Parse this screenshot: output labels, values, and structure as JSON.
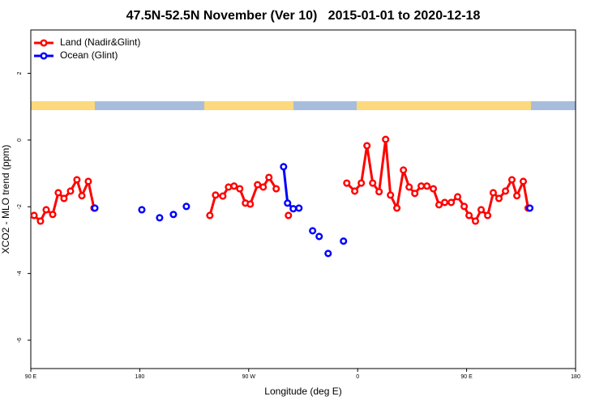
{
  "chart_data": {
    "type": "line",
    "title": "47.5N-52.5N November (Ver 10)   2015-01-01 to 2020-12-18",
    "x_label": "Longitude (deg E)",
    "y_label": "XCO2 - MLO trend (ppm)",
    "xlim": [
      90,
      540
    ],
    "ylim": [
      -6.85,
      3.3
    ],
    "xticks": [
      {
        "value": 90,
        "label": "90 E"
      },
      180,
      {
        "value": 270,
        "label": "90 W"
      },
      {
        "value": 360,
        "label": "0"
      },
      {
        "value": 450,
        "label": "90 E"
      },
      {
        "value": 540,
        "label": "180"
      }
    ],
    "yticks": [
      2,
      0,
      -2,
      -4,
      -6
    ],
    "legend": "topleft",
    "series": [
      {
        "name": "Land (Nadir&Glint)",
        "color": "#ff0000",
        "x": [
          92.7,
          98.0,
          102.7,
          108.1,
          112.7,
          117.4,
          122.8,
          128.1,
          132.2,
          137.5,
          142.2,
          null,
          237.9,
          242.6,
          248.6,
          253.3,
          257.9,
          262.6,
          267.3,
          271.3,
          277.3,
          282.0,
          286.7,
          292.7,
          null,
          302.8,
          null,
          351.0,
          357.6,
          363.0,
          367.7,
          372.4,
          377.7,
          383.1,
          387.1,
          392.4,
          397.8,
          402.5,
          407.2,
          412.5,
          417.2,
          422.5,
          427.2,
          431.9,
          437.3,
          442.6,
          448.0,
          452.0,
          457.3,
          462.0,
          467.4,
          472.0,
          476.7,
          482.1,
          487.4,
          491.5,
          496.8,
          500.8
        ],
        "values": [
          -2.26,
          -2.43,
          -2.09,
          -2.23,
          -1.58,
          -1.75,
          -1.53,
          -1.19,
          -1.67,
          -1.24,
          -2.04,
          null,
          -2.26,
          -1.65,
          -1.68,
          -1.41,
          -1.38,
          -1.46,
          -1.89,
          -1.92,
          -1.34,
          -1.41,
          -1.12,
          -1.46,
          null,
          -2.26,
          null,
          -1.29,
          -1.53,
          -1.29,
          -0.17,
          -1.29,
          -1.55,
          0.02,
          -1.65,
          -2.04,
          -0.9,
          -1.41,
          -1.6,
          -1.38,
          -1.38,
          -1.46,
          -1.94,
          -1.87,
          -1.87,
          -1.7,
          -1.99,
          -2.26,
          -2.43,
          -2.09,
          -2.26,
          -1.58,
          -1.75,
          -1.53,
          -1.19,
          -1.67,
          -1.24,
          -2.04
        ]
      },
      {
        "name": "Ocean (Glint)",
        "color": "#0000ff",
        "x": [
          142.9,
          null,
          181.7,
          null,
          196.4,
          null,
          207.8,
          null,
          218.5,
          null,
          298.8,
          302.1,
          306.8,
          311.5,
          null,
          322.8,
          null,
          328.2,
          null,
          335.6,
          null,
          348.3,
          null,
          502.2
        ],
        "values": [
          -2.04,
          null,
          -2.09,
          null,
          -2.33,
          null,
          -2.23,
          null,
          -1.99,
          null,
          -0.8,
          -1.89,
          -2.06,
          -2.04,
          null,
          -2.72,
          null,
          -2.89,
          null,
          -3.4,
          null,
          -3.03,
          null,
          -2.04
        ]
      }
    ]
  }
}
